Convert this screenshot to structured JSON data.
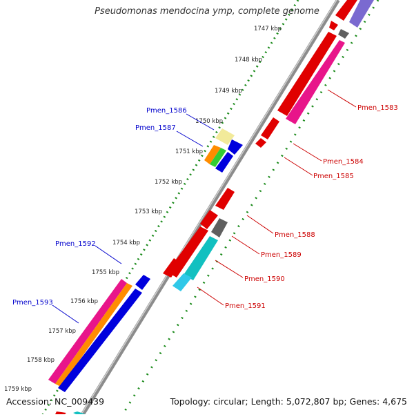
{
  "title": "Pseudomonas mendocina ymp, complete genome",
  "footer": {
    "accession": "Accession: NC_009439",
    "summary": "Topology: circular; Length: 5,072,807 bp; Genes: 4,675"
  },
  "ticks": [
    "1747 kbp",
    "1748 kbp",
    "1749 kbp",
    "1750 kbp",
    "1751 kbp",
    "1752 kbp",
    "1753 kbp",
    "1754 kbp",
    "1755 kbp",
    "1756 kbp",
    "1757 kbp",
    "1758 kbp",
    "1759 kbp"
  ],
  "gene_labels": {
    "forward": [
      "Pmen_1586",
      "Pmen_1587",
      "Pmen_1592",
      "Pmen_1593"
    ],
    "reverse": [
      "Pmen_1583",
      "Pmen_1584",
      "Pmen_1585",
      "Pmen_1588",
      "Pmen_1589",
      "Pmen_1590",
      "Pmen_1591"
    ]
  },
  "colors": {
    "forward_label": "#0000cc",
    "reverse_label": "#cc0000",
    "backbone": "#9a9a9a",
    "tick_dots": "#1a8a1a"
  }
}
